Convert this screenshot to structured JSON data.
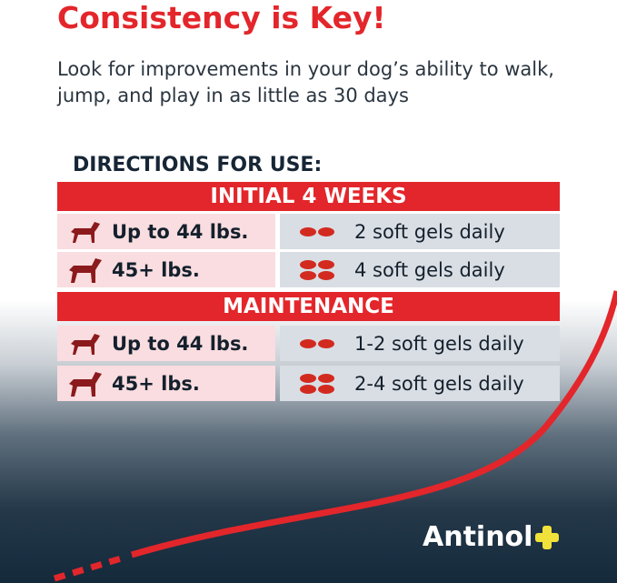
{
  "title": "Consistency is Key!",
  "subtitle": "Look for improvements in your dog’s ability to walk, jump, and play in as little as 30 days",
  "directions_heading": "DIRECTIONS FOR USE:",
  "sections": [
    {
      "heading": "INITIAL 4 WEEKS",
      "rows": [
        {
          "weight": "Up to 44 lbs.",
          "dose": "2 soft gels daily",
          "gels": 2
        },
        {
          "weight": "45+ lbs.",
          "dose": "4 soft gels daily",
          "gels": 4
        }
      ]
    },
    {
      "heading": "MAINTENANCE",
      "rows": [
        {
          "weight": "Up to 44 lbs.",
          "dose": "1-2 soft gels daily",
          "gels": 2
        },
        {
          "weight": "45+ lbs.",
          "dose": "2-4 soft gels daily",
          "gels": 4
        }
      ]
    }
  ],
  "logo": "Antinol",
  "colors": {
    "accent": "#e3262b",
    "logo_plus": "#f0e23a",
    "background_dark": "#142a3b"
  }
}
